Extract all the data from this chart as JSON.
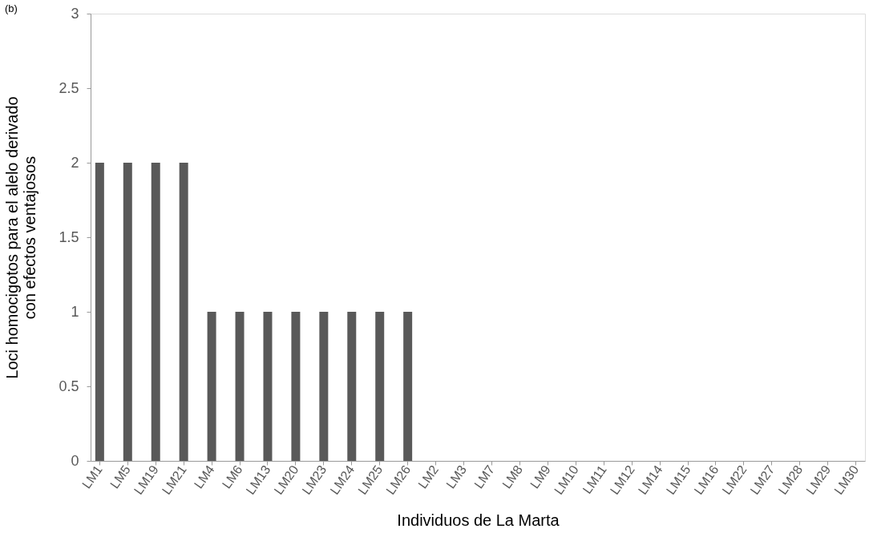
{
  "chart_data": {
    "type": "bar",
    "categories": [
      "LM1",
      "LM5",
      "LM19",
      "LM21",
      "LM4",
      "LM6",
      "LM13",
      "LM20",
      "LM23",
      "LM24",
      "LM25",
      "LM26",
      "LM2",
      "LM3",
      "LM7",
      "LM8",
      "LM9",
      "LM10",
      "LM11",
      "LM12",
      "LM14",
      "LM15",
      "LM16",
      "LM22",
      "LM27",
      "LM28",
      "LM29",
      "LM30"
    ],
    "values": [
      2,
      2,
      2,
      2,
      1,
      1,
      1,
      1,
      1,
      1,
      1,
      1,
      0,
      0,
      0,
      0,
      0,
      0,
      0,
      0,
      0,
      0,
      0,
      0,
      0,
      0,
      0,
      0
    ],
    "color": "#595959",
    "xlabel": "Individuos de La Marta",
    "ylabel": "Loci homocigotos para el alelo derivado\ncon efectos ventajosos",
    "ylim": [
      0,
      3
    ],
    "yticks": [
      0,
      0.5,
      1,
      1.5,
      2,
      2.5,
      3
    ],
    "grid": false,
    "annotations": [
      "(b)"
    ]
  }
}
